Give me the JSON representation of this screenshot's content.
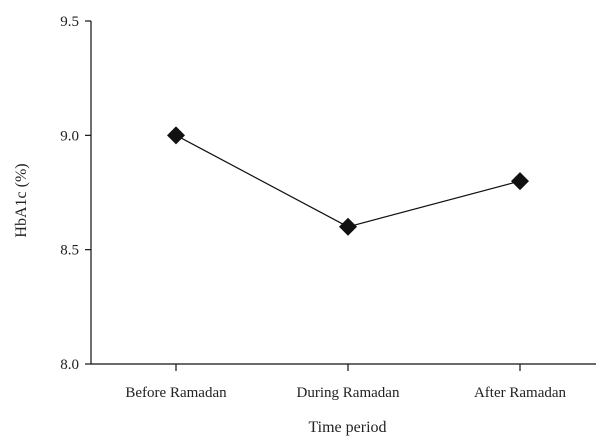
{
  "chart_data": {
    "type": "line",
    "title": "",
    "xlabel": "Time period",
    "ylabel": "HbA1c (%)",
    "categories": [
      "Before Ramadan",
      "During Ramadan",
      "After Ramadan"
    ],
    "series": [
      {
        "values": [
          9.0,
          8.6,
          8.8
        ]
      }
    ],
    "ylim": [
      8.0,
      9.5
    ],
    "yticks": [
      "8.0",
      "8.5",
      "9.0",
      "9.5"
    ],
    "grid": false,
    "marker": "diamond",
    "colors": {
      "line": "#111111",
      "axis": "#111111",
      "text": "#222222"
    }
  }
}
